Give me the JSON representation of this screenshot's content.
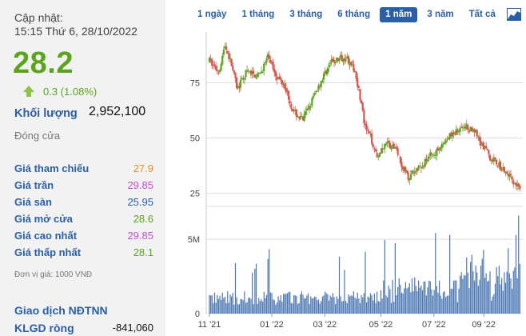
{
  "left_panel": {
    "update_label": "Cập nhật:",
    "update_time": "15:15 Thứ 6, 28/10/2022",
    "price": "28.2",
    "change": "0.3 (1.08%)",
    "volume_label": "Khối lượng",
    "volume_value": "2,952,100",
    "close_label": "Đóng cửa",
    "stats": [
      {
        "label": "Giá tham chiếu",
        "value": "27.9",
        "color": "#e8901a"
      },
      {
        "label": "Giá trần",
        "value": "29.85",
        "color": "#c64fc9"
      },
      {
        "label": "Giá sàn",
        "value": "25.95",
        "color": "#2b5fa5"
      },
      {
        "label": "Giá mở cửa",
        "value": "28.6",
        "color": "#5aa51d"
      },
      {
        "label": "Giá cao nhất",
        "value": "29.85",
        "color": "#c64fc9"
      },
      {
        "label": "Giá thấp nhất",
        "value": "28.1",
        "color": "#5aa51d"
      }
    ],
    "unit_note": "Đơn vị giá: 1000 VNĐ",
    "foreign_label": "Giao dịch NĐTNN",
    "net_volume_label": "KLGD ròng",
    "net_volume_value": "-841,060"
  },
  "tabs": [
    {
      "label": "1 ngày",
      "active": false
    },
    {
      "label": "1 tháng",
      "active": false
    },
    {
      "label": "3 tháng",
      "active": false
    },
    {
      "label": "6 tháng",
      "active": false
    },
    {
      "label": "1 năm",
      "active": true
    },
    {
      "label": "3 năm",
      "active": false
    },
    {
      "label": "Tất cả",
      "active": false
    }
  ],
  "chart_icon": "area-chart-icon",
  "colors": {
    "up": "#5aa51d",
    "down": "#d9534f",
    "accent": "#2b5fa5",
    "volume": "#2b5fa5"
  },
  "chart_data": {
    "type": "candlestick",
    "price_axis": {
      "ticks": [
        25,
        50,
        75
      ],
      "ylim": [
        22,
        98
      ]
    },
    "volume_axis": {
      "ticks": [
        "0",
        "5M"
      ],
      "tick_values": [
        0,
        5000000
      ],
      "ylim": [
        0,
        7000000
      ]
    },
    "x_ticks": [
      "11 '21",
      "01 '22",
      "03 '22",
      "05 '22",
      "07 '22",
      "09 '22"
    ],
    "anchors": [
      {
        "t": 0.0,
        "p": 85
      },
      {
        "t": 0.03,
        "p": 80
      },
      {
        "t": 0.05,
        "p": 92
      },
      {
        "t": 0.07,
        "p": 84
      },
      {
        "t": 0.09,
        "p": 72
      },
      {
        "t": 0.12,
        "p": 80
      },
      {
        "t": 0.16,
        "p": 78
      },
      {
        "t": 0.19,
        "p": 87
      },
      {
        "t": 0.22,
        "p": 77
      },
      {
        "t": 0.24,
        "p": 75
      },
      {
        "t": 0.27,
        "p": 62
      },
      {
        "t": 0.3,
        "p": 58
      },
      {
        "t": 0.33,
        "p": 67
      },
      {
        "t": 0.36,
        "p": 76
      },
      {
        "t": 0.39,
        "p": 84
      },
      {
        "t": 0.42,
        "p": 86
      },
      {
        "t": 0.44,
        "p": 87
      },
      {
        "t": 0.47,
        "p": 80
      },
      {
        "t": 0.49,
        "p": 65
      },
      {
        "t": 0.5,
        "p": 55
      },
      {
        "t": 0.52,
        "p": 50
      },
      {
        "t": 0.54,
        "p": 42
      },
      {
        "t": 0.57,
        "p": 48
      },
      {
        "t": 0.6,
        "p": 45
      },
      {
        "t": 0.62,
        "p": 38
      },
      {
        "t": 0.64,
        "p": 32
      },
      {
        "t": 0.66,
        "p": 35
      },
      {
        "t": 0.68,
        "p": 37
      },
      {
        "t": 0.71,
        "p": 42
      },
      {
        "t": 0.74,
        "p": 45
      },
      {
        "t": 0.77,
        "p": 50
      },
      {
        "t": 0.8,
        "p": 54
      },
      {
        "t": 0.83,
        "p": 55
      },
      {
        "t": 0.86,
        "p": 53
      },
      {
        "t": 0.88,
        "p": 46
      },
      {
        "t": 0.9,
        "p": 42
      },
      {
        "t": 0.93,
        "p": 38
      },
      {
        "t": 0.96,
        "p": 33
      },
      {
        "t": 1.0,
        "p": 28
      }
    ]
  }
}
